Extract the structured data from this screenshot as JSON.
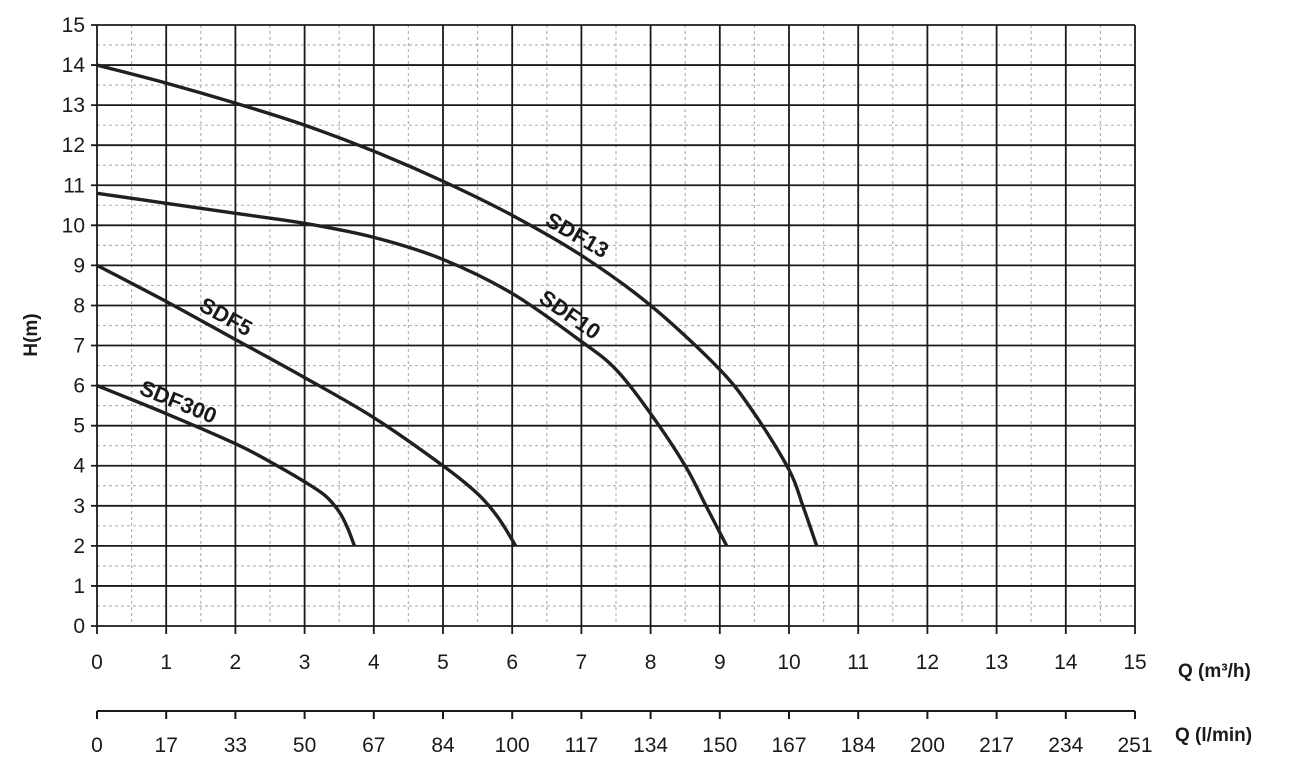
{
  "chart_data": {
    "type": "line",
    "xlabel": "Q (m³/h)",
    "ylabel": "H(m)",
    "xlabel2": "Q (l/min)",
    "xlim": [
      0,
      15
    ],
    "ylim": [
      0,
      15
    ],
    "x_ticks": [
      0,
      1,
      2,
      3,
      4,
      5,
      6,
      7,
      8,
      9,
      10,
      11,
      12,
      13,
      14,
      15
    ],
    "y_ticks": [
      0,
      1,
      2,
      3,
      4,
      5,
      6,
      7,
      8,
      9,
      10,
      11,
      12,
      13,
      14,
      15
    ],
    "x2_ticks": [
      "0",
      "17",
      "33",
      "50",
      "67",
      "84",
      "100",
      "117",
      "134",
      "150",
      "167",
      "184",
      "200",
      "217",
      "234",
      "251"
    ],
    "grid": true,
    "colors": {
      "line": "#231f20",
      "grid_major": "#1a1a1a",
      "grid_minor": "#b5b5b5"
    },
    "series": [
      {
        "name": "SDF300",
        "x": [
          0,
          1,
          2,
          2.5,
          3,
          3.3,
          3.5,
          3.62,
          3.72
        ],
        "y": [
          6,
          5.3,
          4.55,
          4.1,
          3.6,
          3.25,
          2.85,
          2.45,
          2.0
        ]
      },
      {
        "name": "SDF5",
        "x": [
          0,
          1,
          2,
          3,
          4,
          5,
          5.5,
          5.8,
          6.05
        ],
        "y": [
          9,
          8.1,
          7.15,
          6.2,
          5.2,
          4.0,
          3.3,
          2.7,
          2.0
        ]
      },
      {
        "name": "SDF10",
        "x": [
          0,
          1,
          2,
          3,
          4,
          5,
          6,
          7,
          7.5,
          8,
          8.5,
          8.8,
          9.1
        ],
        "y": [
          10.8,
          10.55,
          10.3,
          10.05,
          9.7,
          9.15,
          8.3,
          7.1,
          6.4,
          5.3,
          4.0,
          3.0,
          2.0
        ]
      },
      {
        "name": "SDF13",
        "x": [
          0,
          1,
          2,
          3,
          4,
          5,
          6,
          7,
          8,
          9,
          9.5,
          10,
          10.2,
          10.4
        ],
        "y": [
          14,
          13.55,
          13.05,
          12.5,
          11.85,
          11.1,
          10.25,
          9.25,
          8.0,
          6.4,
          5.3,
          3.9,
          3.0,
          2.0
        ]
      }
    ]
  }
}
